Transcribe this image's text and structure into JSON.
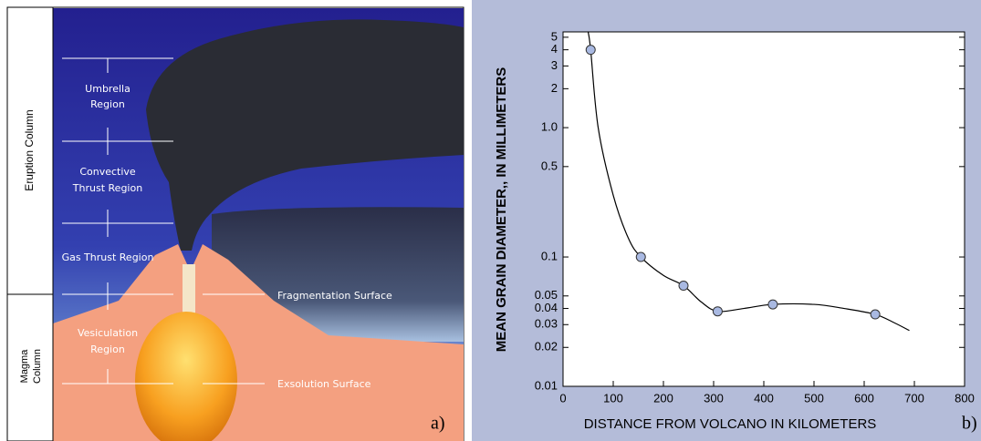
{
  "diagram": {
    "panel_label": "a)",
    "columns": [
      "Eruption Column",
      [
        "Magma",
        "Column"
      ]
    ],
    "labels": [
      [
        "Umbrella",
        "Region"
      ],
      [
        "Convective",
        "Thrust Region"
      ],
      [
        "Gas Thrust Region"
      ],
      [
        "Vesiculation",
        "Region"
      ],
      [
        "Fragmentation Surface"
      ],
      [
        "Exsolution Surface"
      ]
    ]
  },
  "chart_data": {
    "type": "scatter",
    "panel_label": "b)",
    "x_label": "DISTANCE FROM VOLCANO IN KILOMETERS",
    "y_label": "MEAN GRAIN DIAMETER,, IN MILLIMETERS",
    "xlim": [
      0,
      800
    ],
    "xticks": [
      0,
      100,
      200,
      300,
      400,
      500,
      600,
      700,
      800
    ],
    "ylim": [
      0.01,
      5.5
    ],
    "y_scale": "log",
    "yticks": [
      0.01,
      0.02,
      0.03,
      0.04,
      0.05,
      0.1,
      0.5,
      {
        "value": 1,
        "label": "1.0"
      },
      2,
      3,
      4,
      5
    ],
    "series": [
      {
        "style": "line",
        "color": "#000000",
        "x": [
          50,
          55,
          70,
          100,
          130,
          155,
          200,
          240,
          275,
          308,
          360,
          418,
          500,
          560,
          622,
          660,
          690
        ],
        "values": [
          5.5,
          4.0,
          1.0,
          0.3,
          0.14,
          0.1,
          0.072,
          0.06,
          0.045,
          0.038,
          0.04,
          0.043,
          0.043,
          0.04,
          0.036,
          0.031,
          0.027
        ]
      },
      {
        "style": "marker",
        "color": "#a9b9e2",
        "x": [
          55,
          155,
          240,
          308,
          418,
          622
        ],
        "values": [
          4.0,
          0.1,
          0.06,
          0.038,
          0.043,
          0.036
        ]
      }
    ]
  }
}
